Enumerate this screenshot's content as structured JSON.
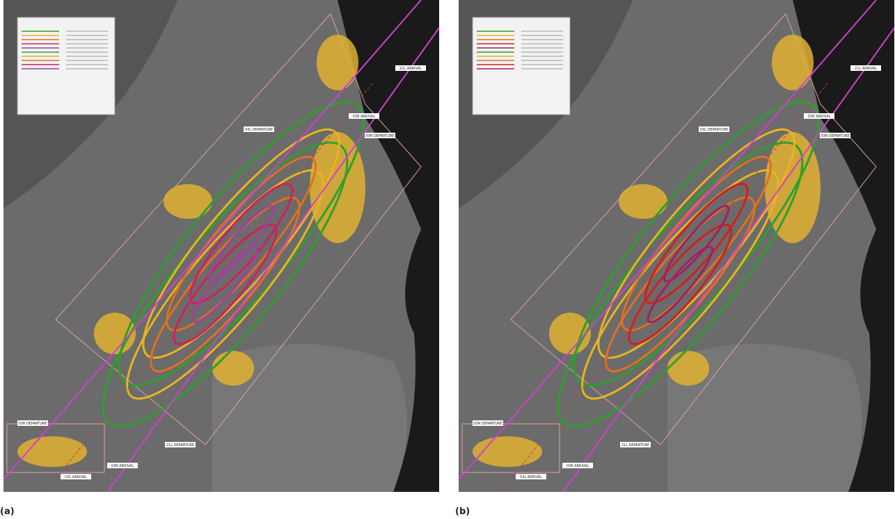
{
  "panels": [
    {
      "label": "(a)",
      "route_labels": [
        "03L DEPARTURE",
        "03R ARRIVAL",
        "21L ARRIVAL",
        "03R DEPARTURE",
        "03R DEPARTURE",
        "21L DEPARTURE",
        "03R ARRIVAL",
        "03L ARRIVAL"
      ]
    },
    {
      "label": "(b)",
      "route_labels": [
        "03L DEPARTURE",
        "03R ARRIVAL",
        "21L ARRIVAL",
        "03R DEPARTURE",
        "03R DEPARTURE",
        "21L DEPARTURE",
        "03R ARRIVAL",
        "03L ARRIVAL"
      ]
    }
  ]
}
